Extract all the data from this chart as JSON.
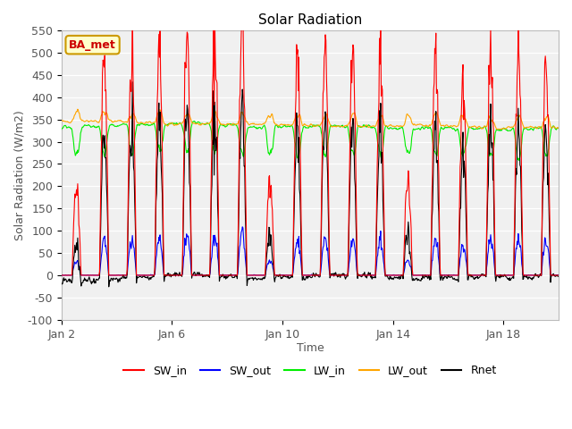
{
  "title": "Solar Radiation",
  "xlabel": "Time",
  "ylabel": "Solar Radiation (W/m2)",
  "ylim": [
    -100,
    550
  ],
  "bg_color": "#f0f0f0",
  "grid_color": "white",
  "legend_items": [
    "SW_in",
    "SW_out",
    "LW_in",
    "LW_out",
    "Rnet"
  ],
  "legend_colors": [
    "red",
    "blue",
    "#00ee00",
    "orange",
    "black"
  ],
  "box_label": "BA_met",
  "box_facecolor": "#ffffcc",
  "box_edgecolor": "#cc9900",
  "box_textcolor": "#cc0000",
  "xtick_labels": [
    "Jan 2",
    "Jan 6",
    "Jan 10",
    "Jan 14",
    "Jan 18"
  ],
  "xtick_positions": [
    2,
    6,
    10,
    14,
    18
  ],
  "xlim": [
    2,
    20
  ],
  "seed": 17
}
